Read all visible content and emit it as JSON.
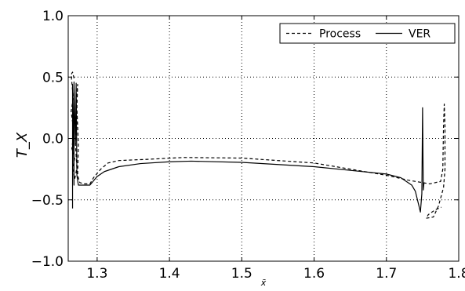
{
  "chart_data": {
    "type": "line",
    "title": "",
    "xlabel": "x̄",
    "ylabel": "T_X",
    "xlim": [
      1.26,
      1.8
    ],
    "ylim": [
      -1.0,
      1.0
    ],
    "x_ticks": [
      1.3,
      1.4,
      1.5,
      1.6,
      1.7,
      1.8
    ],
    "x_tick_labels": [
      "1.3",
      "1.4",
      "1.5",
      "1.6",
      "1.7",
      "1.8"
    ],
    "y_ticks": [
      -1.0,
      -0.5,
      0.0,
      0.5,
      1.0
    ],
    "y_tick_labels": [
      "−1.0",
      "−0.5",
      "0.0",
      "0.5",
      "1.0"
    ],
    "grid": true,
    "legend": {
      "placement": "top-right",
      "entries": [
        {
          "label": "Process",
          "style": "dashed"
        },
        {
          "label": "VER",
          "style": "solid"
        }
      ]
    },
    "series": [
      {
        "name": "Process",
        "style": "dashed",
        "color": "#000000",
        "points": [
          [
            1.268,
            0.49
          ],
          [
            1.266,
            0.54
          ],
          [
            1.264,
            0.52
          ],
          [
            1.267,
            0.33
          ],
          [
            1.264,
            0.22
          ],
          [
            1.268,
            0.05
          ],
          [
            1.265,
            -0.08
          ],
          [
            1.269,
            -0.16
          ],
          [
            1.266,
            -0.25
          ],
          [
            1.269,
            -0.33
          ],
          [
            1.272,
            -0.24
          ],
          [
            1.27,
            -0.05
          ],
          [
            1.272,
            0.15
          ],
          [
            1.271,
            0.3
          ],
          [
            1.273,
            0.44
          ],
          [
            1.272,
            0.25
          ],
          [
            1.274,
            -0.05
          ],
          [
            1.273,
            -0.3
          ],
          [
            1.276,
            -0.36
          ],
          [
            1.282,
            -0.37
          ],
          [
            1.29,
            -0.37
          ],
          [
            1.295,
            -0.32
          ],
          [
            1.305,
            -0.25
          ],
          [
            1.315,
            -0.2
          ],
          [
            1.33,
            -0.18
          ],
          [
            1.37,
            -0.17
          ],
          [
            1.42,
            -0.155
          ],
          [
            1.5,
            -0.16
          ],
          [
            1.6,
            -0.2
          ],
          [
            1.65,
            -0.25
          ],
          [
            1.7,
            -0.3
          ],
          [
            1.73,
            -0.34
          ],
          [
            1.76,
            -0.37
          ],
          [
            1.775,
            -0.35
          ],
          [
            1.778,
            -0.25
          ],
          [
            1.779,
            0.1
          ],
          [
            1.78,
            0.28
          ],
          [
            1.781,
            0.1
          ],
          [
            1.781,
            -0.25
          ],
          [
            1.779,
            -0.4
          ],
          [
            1.772,
            -0.55
          ],
          [
            1.765,
            -0.64
          ],
          [
            1.755,
            -0.65
          ],
          [
            1.758,
            -0.62
          ],
          [
            1.768,
            -0.58
          ],
          [
            1.776,
            -0.56
          ]
        ]
      },
      {
        "name": "VER",
        "style": "solid",
        "color": "#000000",
        "points": [
          [
            1.266,
            -0.57
          ],
          [
            1.266,
            0.44
          ],
          [
            1.267,
            0.1
          ],
          [
            1.268,
            -0.38
          ],
          [
            1.268,
            0.46
          ],
          [
            1.27,
            -0.05
          ],
          [
            1.271,
            0.45
          ],
          [
            1.272,
            -0.3
          ],
          [
            1.274,
            -0.38
          ],
          [
            1.28,
            -0.38
          ],
          [
            1.29,
            -0.38
          ],
          [
            1.3,
            -0.31
          ],
          [
            1.31,
            -0.27
          ],
          [
            1.33,
            -0.23
          ],
          [
            1.36,
            -0.205
          ],
          [
            1.4,
            -0.19
          ],
          [
            1.43,
            -0.185
          ],
          [
            1.5,
            -0.195
          ],
          [
            1.6,
            -0.23
          ],
          [
            1.65,
            -0.26
          ],
          [
            1.7,
            -0.29
          ],
          [
            1.72,
            -0.32
          ],
          [
            1.735,
            -0.38
          ],
          [
            1.74,
            -0.43
          ],
          [
            1.745,
            -0.55
          ],
          [
            1.747,
            -0.6
          ],
          [
            1.749,
            -0.45
          ],
          [
            1.75,
            0.25
          ],
          [
            1.751,
            -0.42
          ],
          [
            1.752,
            -0.36
          ]
        ]
      }
    ]
  }
}
